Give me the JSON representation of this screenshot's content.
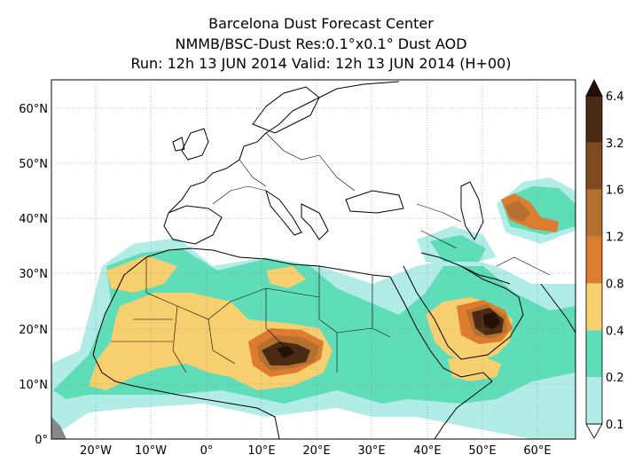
{
  "header": {
    "title": "Barcelona Dust Forecast Center",
    "subtitle": "NMMB/BSC-Dust   Res:0.1°x0.1°   Dust AOD",
    "run_info": "Run: 12h 13 JUN 2014   Valid: 12h 13 JUN 2014 (H+00)"
  },
  "axes": {
    "lat_ticks": [
      "60°N",
      "50°N",
      "40°N",
      "30°N",
      "20°N",
      "10°N",
      "0°"
    ],
    "lon_ticks": [
      "20°W",
      "10°W",
      "0°",
      "10°E",
      "20°E",
      "30°E",
      "40°E",
      "50°E",
      "60°E"
    ]
  },
  "colorbar": {
    "levels": [
      "0.1",
      "0.2",
      "0.4",
      "0.8",
      "1.2",
      "1.6",
      "3.2",
      "6.4"
    ],
    "colors": [
      "#b2ece6",
      "#5fdcb8",
      "#f8cf6e",
      "#dd7b2f",
      "#b4702f",
      "#7e4a1e",
      "#4a2a12",
      "#231108"
    ]
  },
  "colors": {
    "ocean": "#ffffff",
    "coast": "#000000",
    "grid": "#888888"
  }
}
